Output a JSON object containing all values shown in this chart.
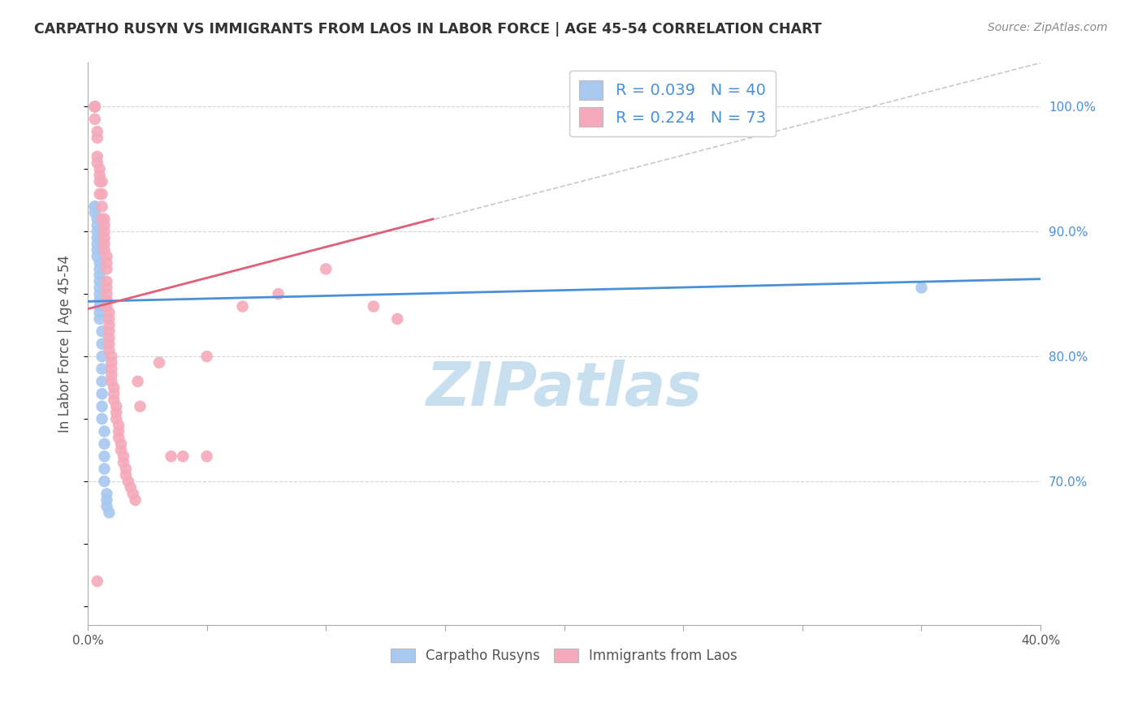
{
  "title": "CARPATHO RUSYN VS IMMIGRANTS FROM LAOS IN LABOR FORCE | AGE 45-54 CORRELATION CHART",
  "source": "Source: ZipAtlas.com",
  "ylabel": "In Labor Force | Age 45-54",
  "xlim": [
    0.0,
    0.4
  ],
  "ylim": [
    0.585,
    1.035
  ],
  "xticks": [
    0.0,
    0.05,
    0.1,
    0.15,
    0.2,
    0.25,
    0.3,
    0.35,
    0.4
  ],
  "xtick_labels": [
    "0.0%",
    "",
    "",
    "",
    "",
    "",
    "",
    "",
    "40.0%"
  ],
  "ytick_labels_right": [
    "70.0%",
    "80.0%",
    "90.0%",
    "100.0%"
  ],
  "yticks_right": [
    0.7,
    0.8,
    0.9,
    1.0
  ],
  "blue_color": "#a8c8f0",
  "pink_color": "#f5aabb",
  "blue_line_color": "#4a90d9",
  "pink_line_color": "#e0607a",
  "ref_line_color": "#c8c8c8",
  "grid_color": "#d4d4d4",
  "blue_trend_x": [
    0.0,
    0.4
  ],
  "blue_trend_y": [
    0.844,
    0.862
  ],
  "pink_trend_x": [
    0.0,
    0.145
  ],
  "pink_trend_y": [
    0.838,
    0.91
  ],
  "ref_line_x": [
    0.0,
    0.4
  ],
  "ref_line_y": [
    0.838,
    1.035
  ],
  "blue_scatter_x": [
    0.003,
    0.003,
    0.003,
    0.003,
    0.003,
    0.004,
    0.004,
    0.004,
    0.004,
    0.004,
    0.004,
    0.004,
    0.005,
    0.005,
    0.005,
    0.005,
    0.005,
    0.005,
    0.005,
    0.005,
    0.005,
    0.005,
    0.006,
    0.006,
    0.006,
    0.006,
    0.006,
    0.006,
    0.006,
    0.006,
    0.007,
    0.007,
    0.007,
    0.007,
    0.007,
    0.008,
    0.008,
    0.008,
    0.009,
    0.35
  ],
  "blue_scatter_y": [
    1.0,
    1.0,
    0.92,
    0.92,
    0.915,
    0.91,
    0.905,
    0.9,
    0.895,
    0.89,
    0.885,
    0.88,
    0.875,
    0.87,
    0.865,
    0.86,
    0.855,
    0.85,
    0.845,
    0.84,
    0.835,
    0.83,
    0.82,
    0.81,
    0.8,
    0.79,
    0.78,
    0.77,
    0.76,
    0.75,
    0.74,
    0.73,
    0.72,
    0.71,
    0.7,
    0.69,
    0.685,
    0.68,
    0.675,
    0.855
  ],
  "pink_scatter_x": [
    0.003,
    0.003,
    0.003,
    0.004,
    0.004,
    0.004,
    0.004,
    0.005,
    0.005,
    0.005,
    0.005,
    0.006,
    0.006,
    0.006,
    0.006,
    0.007,
    0.007,
    0.007,
    0.007,
    0.007,
    0.007,
    0.008,
    0.008,
    0.008,
    0.008,
    0.008,
    0.008,
    0.008,
    0.008,
    0.009,
    0.009,
    0.009,
    0.009,
    0.009,
    0.009,
    0.009,
    0.01,
    0.01,
    0.01,
    0.01,
    0.01,
    0.011,
    0.011,
    0.011,
    0.012,
    0.012,
    0.012,
    0.013,
    0.013,
    0.013,
    0.014,
    0.014,
    0.015,
    0.015,
    0.016,
    0.016,
    0.017,
    0.018,
    0.019,
    0.02,
    0.021,
    0.022,
    0.03,
    0.035,
    0.04,
    0.05,
    0.05,
    0.065,
    0.12,
    0.13,
    0.08,
    0.1,
    0.004
  ],
  "pink_scatter_y": [
    1.0,
    1.0,
    0.99,
    0.98,
    0.975,
    0.96,
    0.955,
    0.95,
    0.945,
    0.94,
    0.93,
    0.94,
    0.93,
    0.92,
    0.91,
    0.91,
    0.905,
    0.9,
    0.895,
    0.89,
    0.885,
    0.88,
    0.875,
    0.87,
    0.86,
    0.855,
    0.85,
    0.845,
    0.84,
    0.835,
    0.83,
    0.825,
    0.82,
    0.815,
    0.81,
    0.805,
    0.8,
    0.795,
    0.79,
    0.785,
    0.78,
    0.775,
    0.77,
    0.765,
    0.76,
    0.755,
    0.75,
    0.745,
    0.74,
    0.735,
    0.73,
    0.725,
    0.72,
    0.715,
    0.71,
    0.705,
    0.7,
    0.695,
    0.69,
    0.685,
    0.78,
    0.76,
    0.795,
    0.72,
    0.72,
    0.72,
    0.8,
    0.84,
    0.84,
    0.83,
    0.85,
    0.87,
    0.62
  ],
  "watermark_text": "ZIPatlas",
  "watermark_color": "#c8dff0"
}
